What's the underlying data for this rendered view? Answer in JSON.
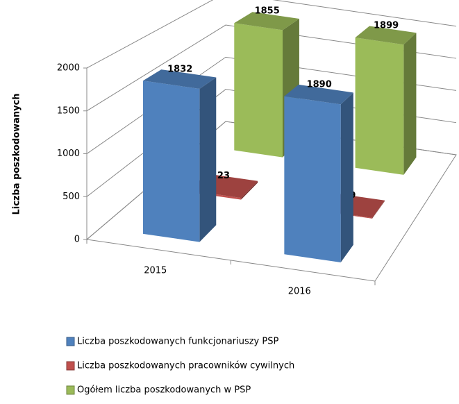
{
  "chart_data": {
    "type": "bar",
    "y_label": "Liczba poszkodowanych",
    "categories": [
      "2015",
      "2016"
    ],
    "series": [
      {
        "name": "Liczba poszkodowanych funkcjonariuszy PSP",
        "color": "#4f81bd",
        "values": [
          1832,
          1890
        ]
      },
      {
        "name": "Liczba poszkodowanych pracowników cywilnych",
        "color": "#c0504d",
        "values": [
          23,
          9
        ]
      },
      {
        "name": "Ogółem liczba poszkodowanych w PSP",
        "color": "#9bbb59",
        "values": [
          1855,
          1899
        ]
      }
    ],
    "ylim": [
      0,
      2000
    ],
    "yticks": [
      0,
      500,
      1000,
      1500,
      2000
    ],
    "grid": true,
    "legend": "bottom"
  }
}
